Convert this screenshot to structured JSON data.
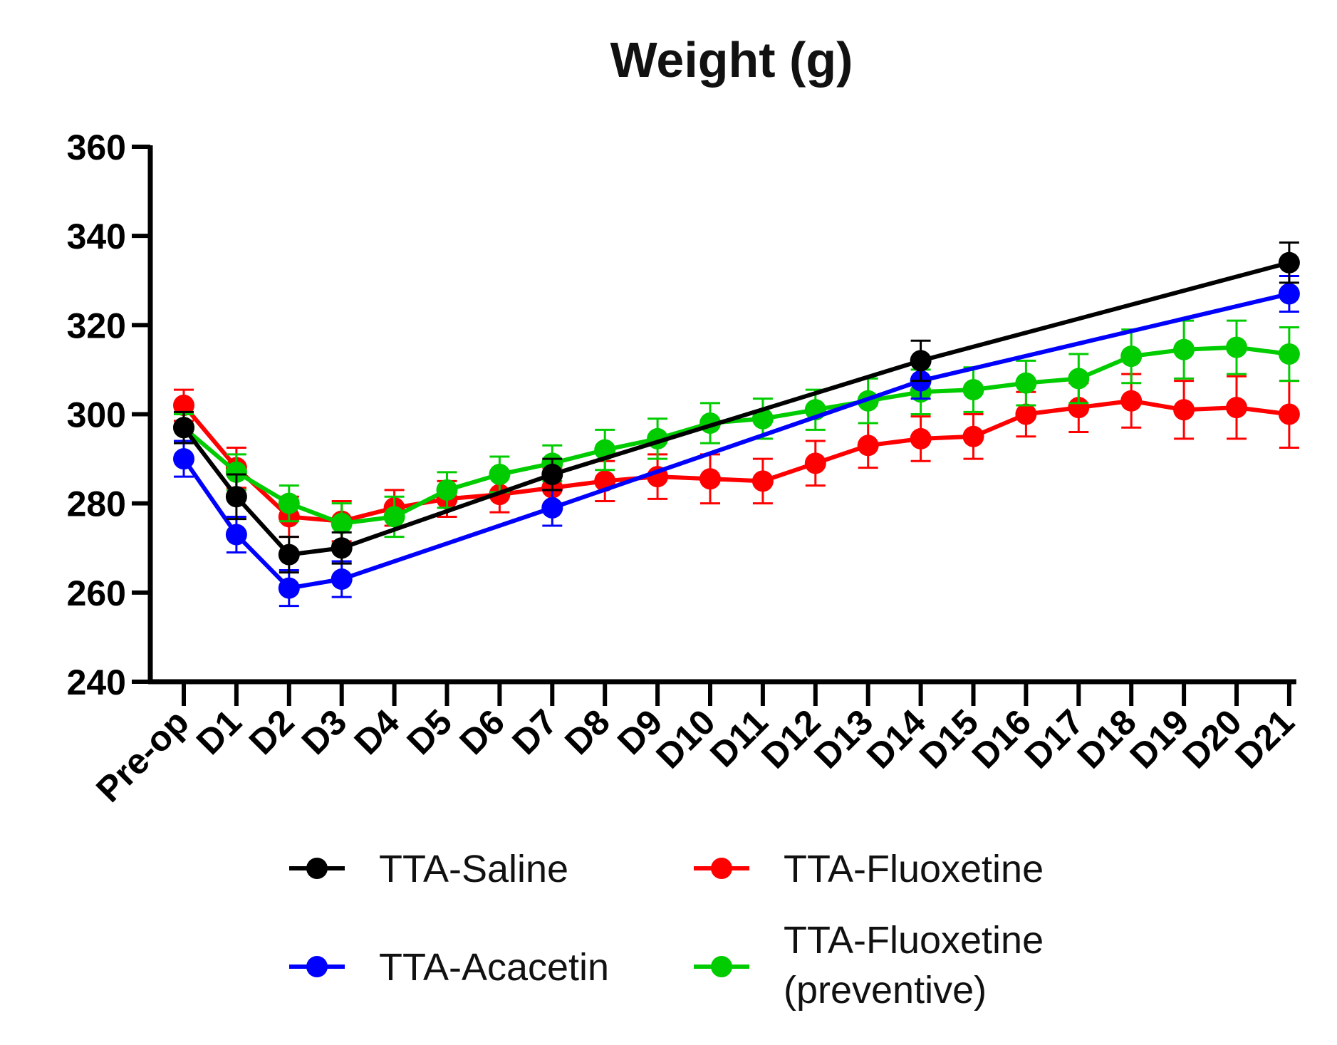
{
  "chart_data": {
    "type": "line",
    "title": "Weight (g)",
    "xlabel": "",
    "ylabel": "",
    "ylim": [
      240,
      360
    ],
    "yticks": [
      240,
      260,
      280,
      300,
      320,
      340,
      360
    ],
    "categories": [
      "Pre-op",
      "D1",
      "D2",
      "D3",
      "D4",
      "D5",
      "D6",
      "D7",
      "D8",
      "D9",
      "D10",
      "D11",
      "D12",
      "D13",
      "D14",
      "D15",
      "D16",
      "D17",
      "D18",
      "D19",
      "D20",
      "D21"
    ],
    "grid": false,
    "legend": "bottom",
    "series": [
      {
        "name": "TTA-Saline",
        "color": "#000000",
        "x": [
          "Pre-op",
          "D1",
          "D2",
          "D3",
          "D7",
          "D14",
          "D21"
        ],
        "values": [
          297,
          281.5,
          268.5,
          270,
          286.5,
          312,
          334
        ],
        "errors": [
          3.5,
          5,
          4,
          3.5,
          3.5,
          4.5,
          4.5
        ]
      },
      {
        "name": "TTA-Acacetin",
        "color": "#0000ff",
        "x": [
          "Pre-op",
          "D1",
          "D2",
          "D3",
          "D7",
          "D14",
          "D21"
        ],
        "values": [
          290,
          273,
          261,
          263,
          279,
          307.5,
          327
        ],
        "errors": [
          4,
          4,
          4,
          4,
          4,
          4,
          4
        ]
      },
      {
        "name": "TTA-Fluoxetine",
        "color": "#ff0000",
        "x": [
          "Pre-op",
          "D1",
          "D2",
          "D3",
          "D4",
          "D5",
          "D6",
          "D7",
          "D8",
          "D9",
          "D10",
          "D11",
          "D12",
          "D13",
          "D14",
          "D15",
          "D16",
          "D17",
          "D18",
          "D19",
          "D20",
          "D21"
        ],
        "values": [
          302,
          288,
          277,
          276,
          279,
          281,
          282,
          283.5,
          285,
          286,
          285.5,
          285,
          289,
          293,
          294.5,
          295,
          300,
          301.5,
          303,
          301,
          301.5,
          300
        ],
        "errors": [
          3.5,
          4.5,
          4.5,
          4.5,
          4,
          4,
          4,
          4.5,
          4.5,
          5,
          5.5,
          5,
          5,
          5,
          5,
          5,
          5,
          5.5,
          6,
          6.5,
          7,
          7.5
        ]
      },
      {
        "name": "TTA-Fluoxetine (preventive)",
        "name_line1": "TTA-Fluoxetine",
        "name_line2": "(preventive)",
        "color": "#00cc00",
        "x": [
          "Pre-op",
          "D1",
          "D2",
          "D3",
          "D4",
          "D5",
          "D6",
          "D7",
          "D8",
          "D9",
          "D10",
          "D11",
          "D12",
          "D13",
          "D14",
          "D15",
          "D16",
          "D17",
          "D18",
          "D19",
          "D20",
          "D21"
        ],
        "values": [
          297,
          287,
          280,
          275.5,
          277,
          283,
          286.5,
          289,
          292,
          294.5,
          298,
          299,
          301,
          303,
          305,
          305.5,
          307,
          308,
          313,
          314.5,
          315,
          313.5
        ],
        "errors": [
          3,
          4,
          4,
          4.5,
          4.5,
          4,
          4,
          4,
          4.5,
          4.5,
          4.5,
          4.5,
          4.5,
          5,
          5,
          5,
          5,
          5.5,
          6,
          6.5,
          6,
          6
        ]
      }
    ]
  }
}
